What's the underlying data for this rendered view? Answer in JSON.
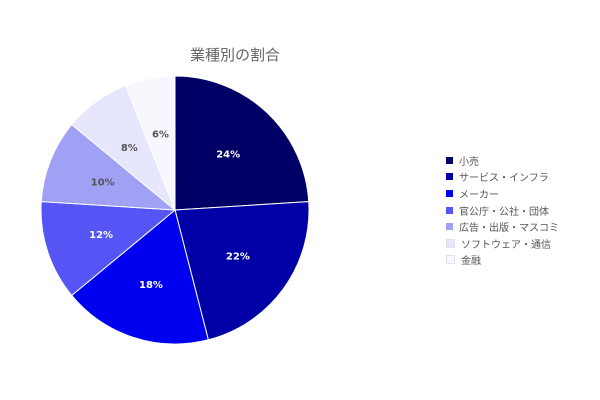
{
  "chart_data": {
    "type": "pie",
    "title": "業種別の割合",
    "categories": [
      "小売",
      "サービス・インフラ",
      "メーカー",
      "官公庁・公社・団体",
      "広告・出版・マスコミ",
      "ソフトウェア・通信",
      "金融"
    ],
    "values": [
      24,
      22,
      18,
      12,
      10,
      8,
      6
    ],
    "labels": [
      "24%",
      "22%",
      "18%",
      "12%",
      "10%",
      "8%",
      "6%"
    ],
    "colors": [
      "#000066",
      "#0000a6",
      "#0000f0",
      "#5555f5",
      "#a0a0f5",
      "#e6e6fc",
      "#f7f7fd"
    ],
    "label_colors": [
      "#ffffff",
      "#ffffff",
      "#ffffff",
      "#ffffff",
      "#555555",
      "#555555",
      "#555555"
    ],
    "legend_position": "right"
  }
}
